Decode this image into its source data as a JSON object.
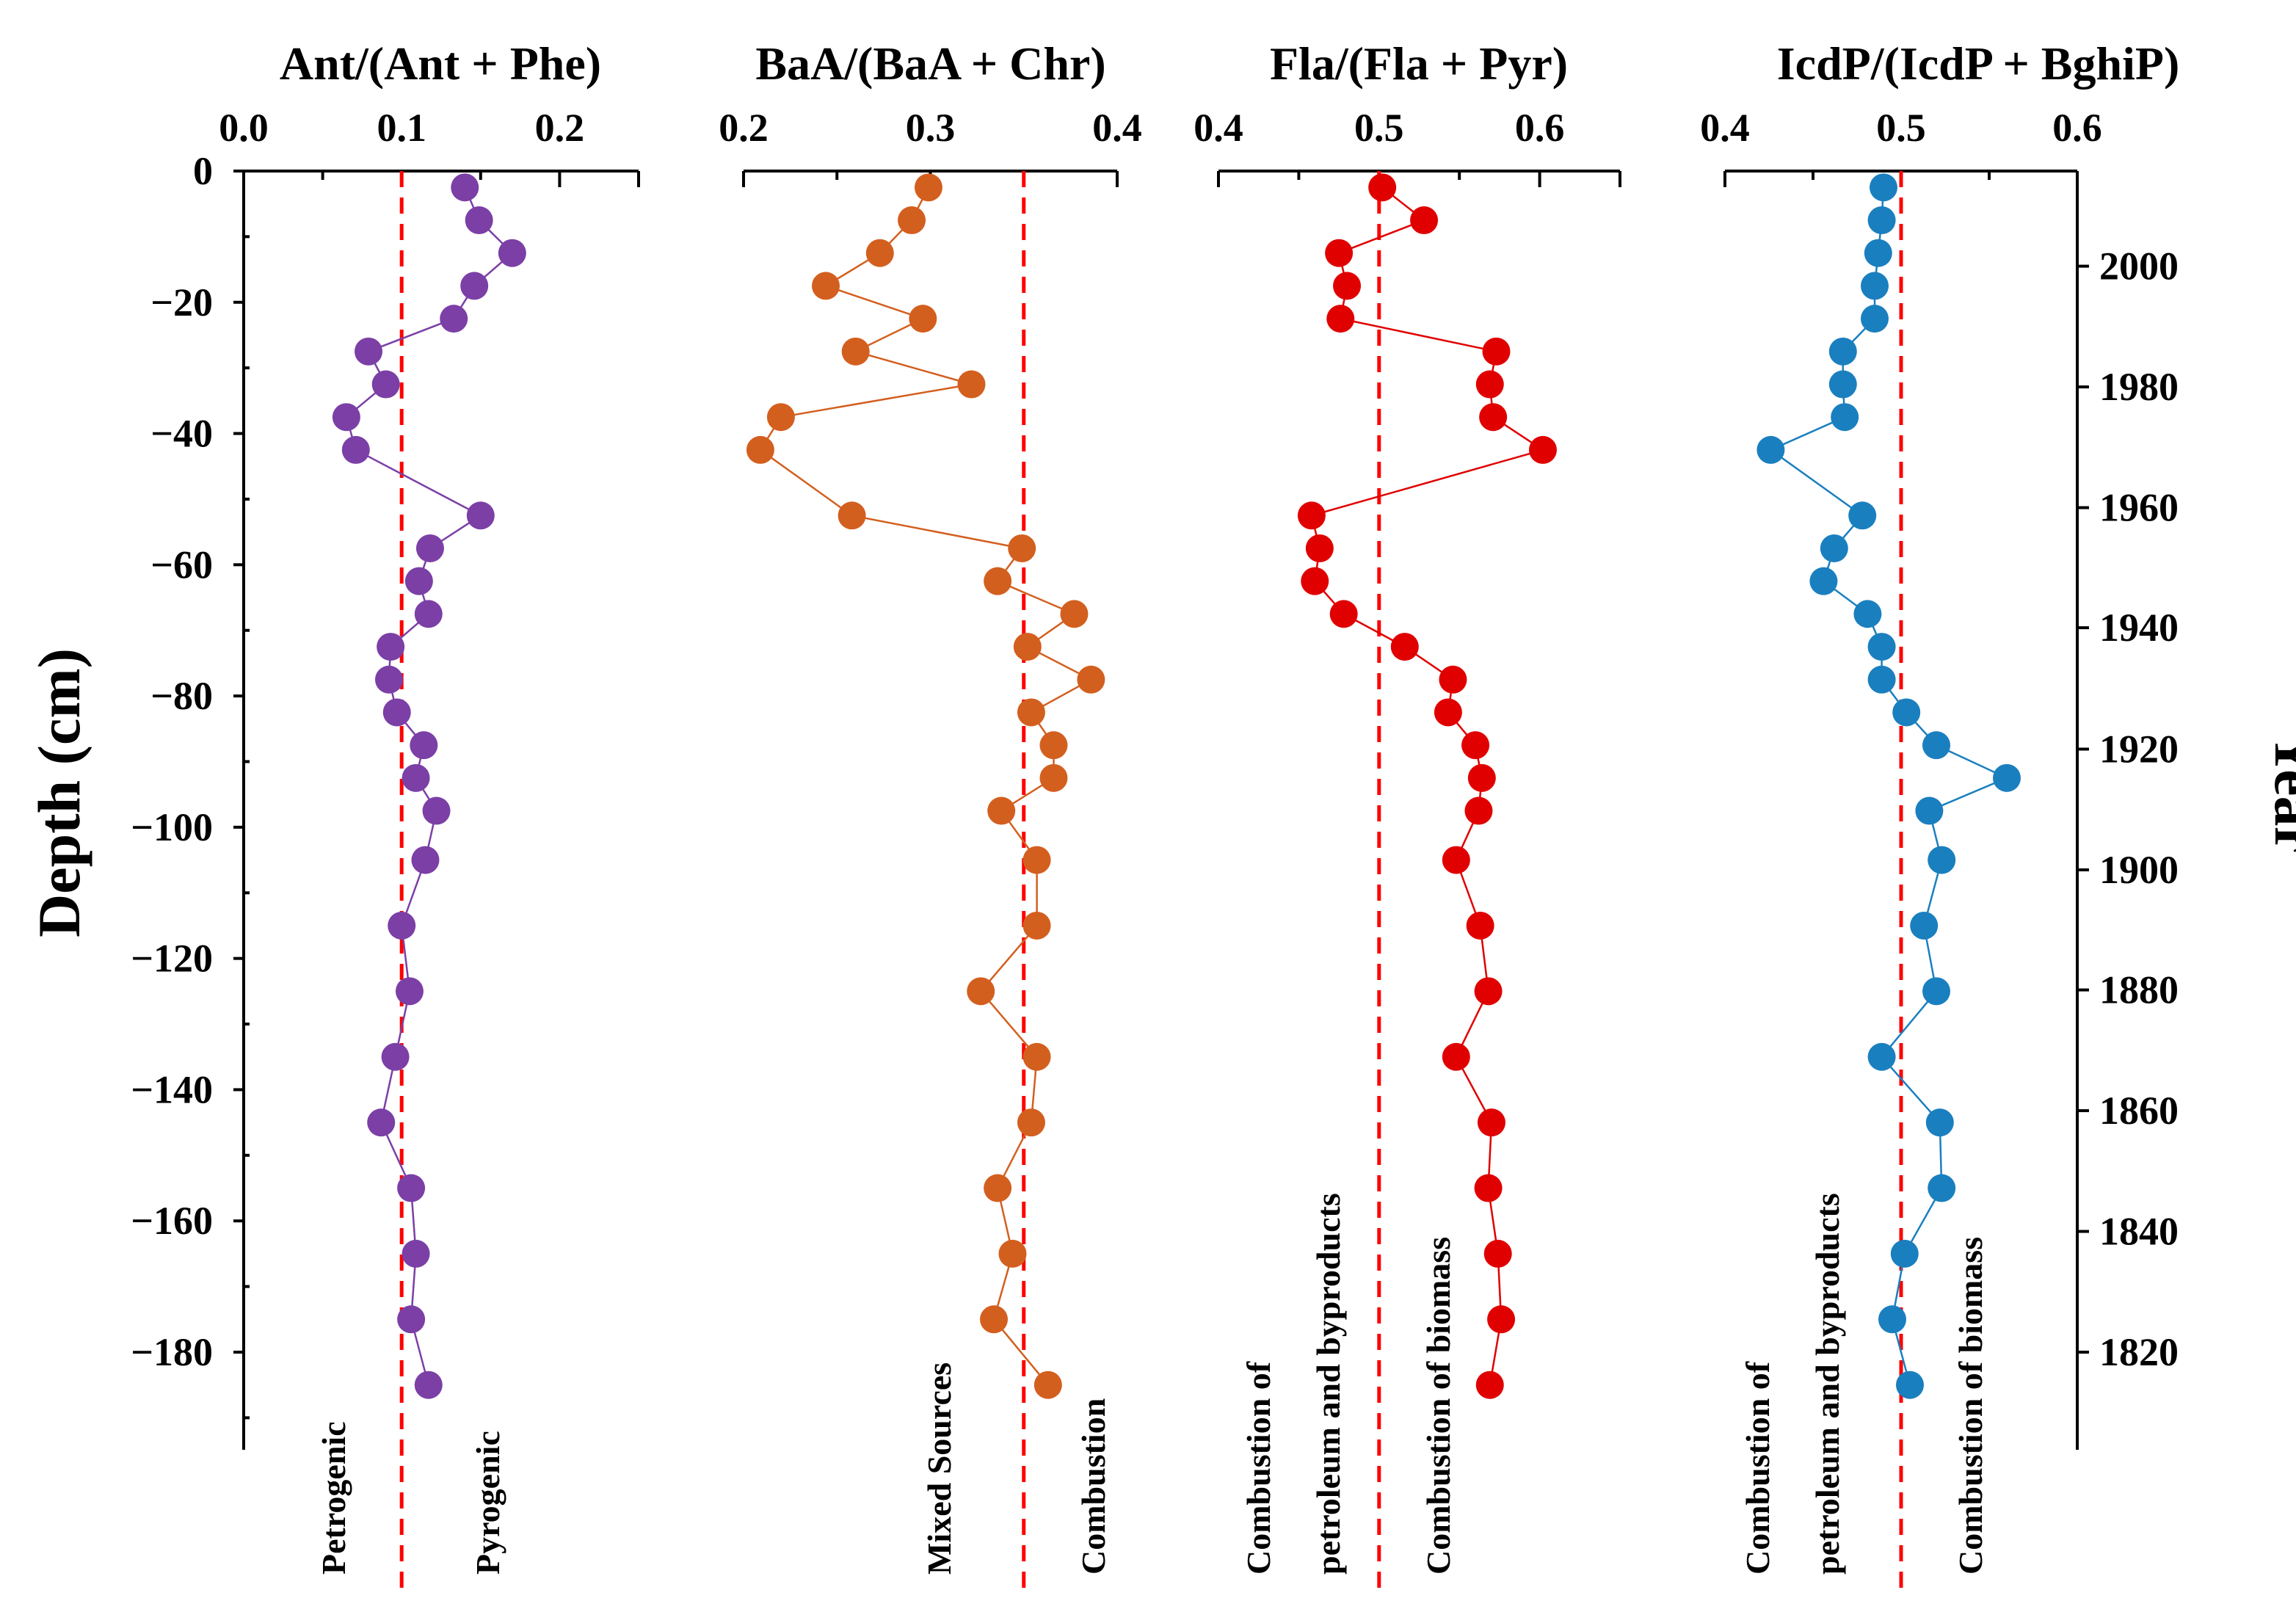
{
  "chart_data": {
    "type": "scatter",
    "ylabel": "Depth (cm)",
    "yticks": [
      "0",
      "−20",
      "−40",
      "−60",
      "−80",
      "−100",
      "−120",
      "−140",
      "−160",
      "−180"
    ],
    "ylim": [
      -193,
      0
    ],
    "year_axis": {
      "label": "Year",
      "ticks": [
        {
          "label": "2000",
          "depth": -14.5
        },
        {
          "label": "1980",
          "depth": -32.9
        },
        {
          "label": "1960",
          "depth": -51.3
        },
        {
          "label": "1940",
          "depth": -69.6
        },
        {
          "label": "1920",
          "depth": -88.1
        },
        {
          "label": "1900",
          "depth": -106.5
        },
        {
          "label": "1880",
          "depth": -124.8
        },
        {
          "label": "1860",
          "depth": -143.2
        },
        {
          "label": "1840",
          "depth": -161.6
        },
        {
          "label": "1820",
          "depth": -180.0
        }
      ]
    },
    "depths": [
      -2.5,
      -7.5,
      -12.5,
      -17.5,
      -22.5,
      -27.5,
      -32.5,
      -37.5,
      -42.5,
      -52.5,
      -57.5,
      -62.5,
      -67.5,
      -72.5,
      -77.5,
      -82.5,
      -87.5,
      -92.5,
      -97.5,
      -105,
      -115,
      -125,
      -135,
      -145,
      -155,
      -165,
      -175,
      -185
    ],
    "panels": [
      {
        "title": "Ant/(Ant + Phe)",
        "xlim": [
          0.0,
          0.25
        ],
        "xticks": [
          "0.0",
          "0.1",
          "0.2"
        ],
        "threshold": 0.1,
        "color": "#7b3fa6",
        "values": [
          0.14,
          0.149,
          0.17,
          0.146,
          0.133,
          0.079,
          0.09,
          0.065,
          0.071,
          0.15,
          0.118,
          0.111,
          0.117,
          0.093,
          0.092,
          0.097,
          0.114,
          0.109,
          0.122,
          0.115,
          0.1,
          0.105,
          0.096,
          0.087,
          0.106,
          0.109,
          0.106,
          0.117
        ],
        "labels": [
          {
            "text": "Petrogenic"
          },
          {
            "text": "Pyrogenic"
          }
        ]
      },
      {
        "title": "BaA/(BaA + Chr)",
        "xlim": [
          0.2,
          0.4
        ],
        "xticks": [
          "0.2",
          "0.3",
          "0.4"
        ],
        "threshold": 0.35,
        "color": "#d35f1f",
        "values": [
          0.299,
          0.29,
          0.273,
          0.244,
          0.296,
          0.26,
          0.322,
          0.22,
          0.209,
          0.258,
          0.349,
          0.336,
          0.377,
          0.352,
          0.386,
          0.354,
          0.366,
          0.366,
          0.338,
          0.357,
          0.357,
          0.327,
          0.357,
          0.354,
          0.336,
          0.344,
          0.334,
          0.363
        ],
        "labels": [
          {
            "text": "Mixed Sources"
          },
          {
            "text": "Combustion"
          }
        ]
      },
      {
        "title": "Fla/(Fla + Pyr)",
        "xlim": [
          0.4,
          0.65
        ],
        "xticks": [
          "0.4",
          "0.5",
          "0.6"
        ],
        "threshold": 0.5,
        "color": "#e00000",
        "values": [
          0.502,
          0.528,
          0.475,
          0.48,
          0.476,
          0.573,
          0.569,
          0.571,
          0.602,
          0.458,
          0.463,
          0.46,
          0.478,
          0.516,
          0.546,
          0.543,
          0.56,
          0.564,
          0.562,
          0.548,
          0.563,
          0.568,
          0.548,
          0.57,
          0.568,
          0.574,
          0.576,
          0.569
        ],
        "labels": [
          {
            "text": "Combustion of"
          },
          {
            "text": "petroleum and byproducts"
          },
          {
            "text": "Combustion of biomass"
          }
        ]
      },
      {
        "title": "IcdP/(IcdP + BghiP)",
        "xlim": [
          0.4,
          0.6
        ],
        "xticks": [
          "0.4",
          "0.5",
          "0.6"
        ],
        "threshold": 0.5,
        "color": "#1a7fbf",
        "values": [
          0.49,
          0.489,
          0.487,
          0.485,
          0.485,
          0.467,
          0.467,
          0.468,
          0.426,
          0.478,
          0.462,
          0.456,
          0.481,
          0.489,
          0.489,
          0.503,
          0.52,
          0.56,
          0.516,
          0.523,
          0.513,
          0.52,
          0.489,
          0.522,
          0.523,
          0.502,
          0.495,
          0.505
        ],
        "labels": [
          {
            "text": "Combustion of"
          },
          {
            "text": "petroleum and byproducts"
          },
          {
            "text": "Combustion of biomass"
          }
        ]
      }
    ]
  }
}
